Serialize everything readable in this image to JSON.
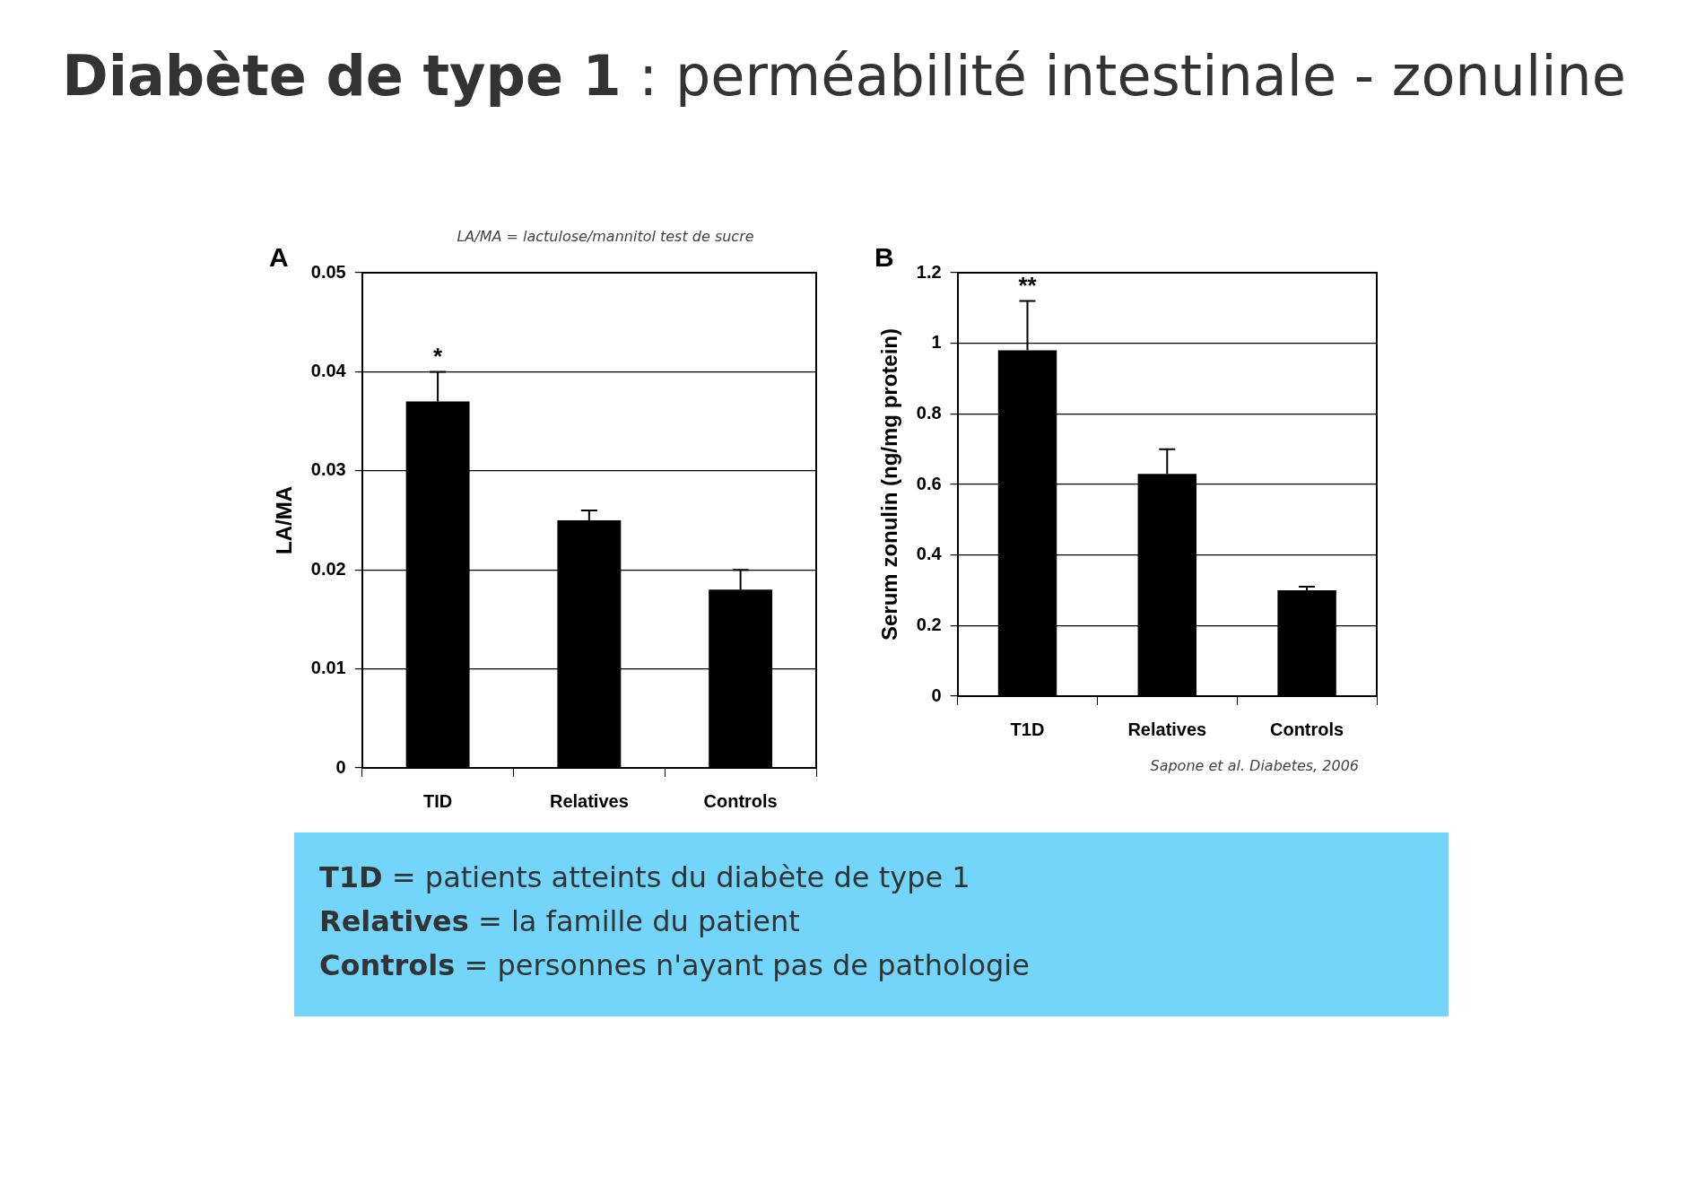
{
  "chart_data": [
    {
      "type": "bar",
      "title": "Diabète de type 1 : perméabilité intestinale - zonuline",
      "subtitle": "LA/MA = lactulose/mannitol test de sucre",
      "ylabel": "LA/MA",
      "categories": [
        "TID",
        "Relatives",
        "Controls"
      ],
      "series": [
        {
          "color": "#000000",
          "values": [
            0.037,
            0.025,
            0.018
          ],
          "errors": [
            [
              0.037,
              0.04
            ],
            [
              0.025,
              0.026
            ],
            [
              0.018,
              0.02
            ]
          ]
        }
      ],
      "ylim": [
        0,
        0.05
      ],
      "yticks": [
        0,
        0.01,
        0.02,
        0.03,
        0.04,
        0.05
      ],
      "grid": "y",
      "legend": false,
      "annotations": [
        "A",
        "*"
      ]
    },
    {
      "type": "bar",
      "ylabel": "Serum zonulin (ng/mg protein)",
      "categories": [
        "T1D",
        "Relatives",
        "Controls"
      ],
      "series": [
        {
          "color": "#000000",
          "values": [
            0.98,
            0.63,
            0.3
          ],
          "errors": [
            [
              0.98,
              1.12
            ],
            [
              0.63,
              0.7
            ],
            [
              0.3,
              0.31
            ]
          ]
        }
      ],
      "ylim": [
        0,
        1.2
      ],
      "yticks": [
        0,
        0.2,
        0.4,
        0.6,
        0.8,
        1,
        1.2
      ],
      "grid": "y",
      "legend": false,
      "annotations": [
        "B",
        "**",
        "Sapone et al. Diabetes, 2006",
        "T1D = patients atteints du diabète de type 1",
        "Relatives = la famille du patient",
        "Controls = personnes n'ayant pas de pathologie"
      ]
    }
  ]
}
